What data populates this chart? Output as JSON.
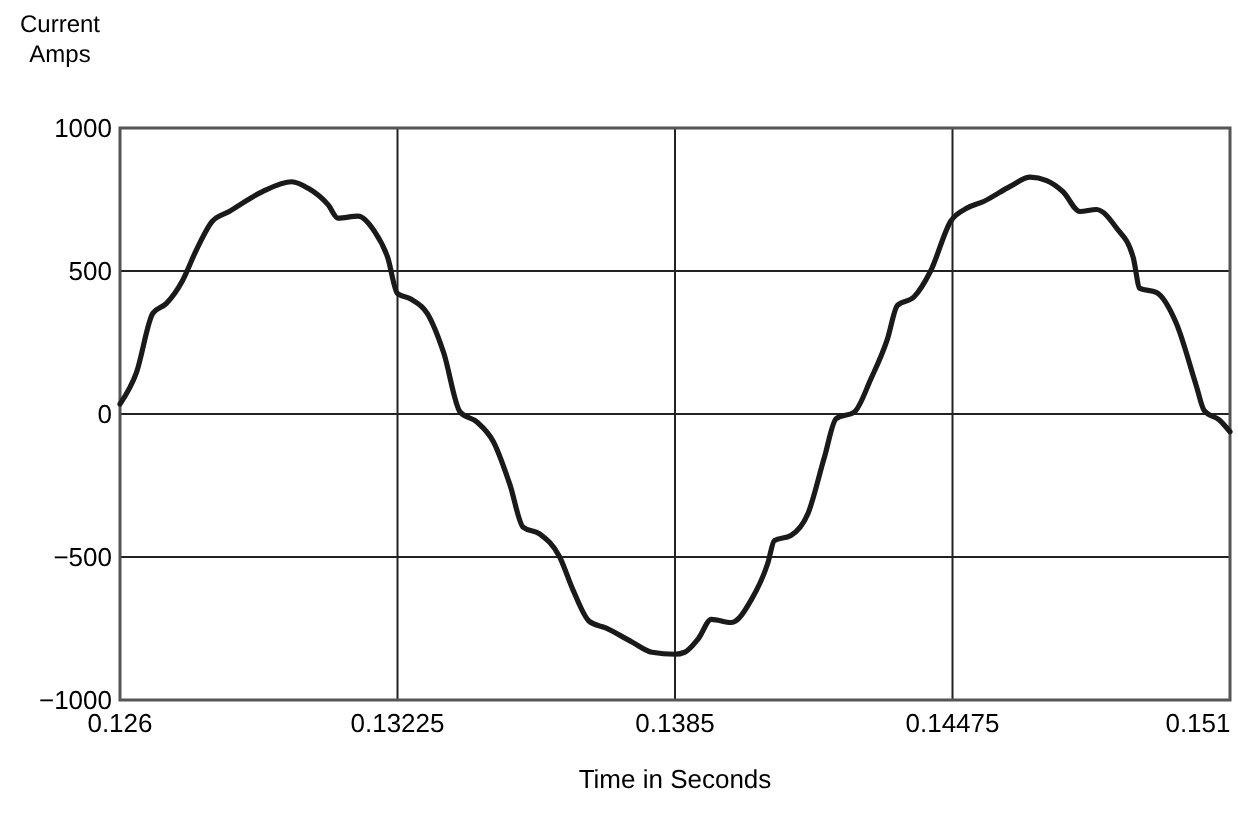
{
  "chart_data": {
    "type": "line",
    "ylabel": "Current\nAmps",
    "xlabel": "Time in Seconds",
    "x": [
      0.126,
      0.12637,
      0.12674,
      0.12704,
      0.12741,
      0.12771,
      0.12808,
      0.12846,
      0.1292,
      0.12987,
      0.13024,
      0.13069,
      0.13091,
      0.13136,
      0.13173,
      0.13203,
      0.13225,
      0.13255,
      0.13292,
      0.13329,
      0.13366,
      0.13404,
      0.13441,
      0.13478,
      0.13508,
      0.13545,
      0.1359,
      0.1362,
      0.13657,
      0.13694,
      0.13754,
      0.13798,
      0.1385,
      0.13872,
      0.13902,
      0.13932,
      0.13977,
      0.14022,
      0.14059,
      0.14074,
      0.14111,
      0.14149,
      0.14186,
      0.14213,
      0.14254,
      0.14291,
      0.14328,
      0.14351,
      0.14388,
      0.14426,
      0.14471,
      0.14508,
      0.14545,
      0.14605,
      0.1465,
      0.14687,
      0.14724,
      0.14762,
      0.14799,
      0.14844,
      0.14882,
      0.14897,
      0.14934,
      0.14979,
      0.15024,
      0.15042,
      0.15076,
      0.151
    ],
    "series": [
      {
        "color": "#1a1a1a",
        "values": [
          35,
          145,
          352,
          386,
          467,
          570,
          674,
          708,
          777,
          812,
          789,
          731,
          685,
          692,
          639,
          547,
          421,
          402,
          352,
          214,
          7,
          -28,
          -97,
          -246,
          -396,
          -419,
          -499,
          -614,
          -725,
          -748,
          -798,
          -833,
          -840,
          -833,
          -787,
          -718,
          -729,
          -649,
          -522,
          -442,
          -425,
          -350,
          -154,
          -16,
          7,
          122,
          260,
          380,
          409,
          501,
          674,
          720,
          743,
          796,
          828,
          816,
          777,
          708,
          715,
          651,
          547,
          439,
          425,
          317,
          99,
          12,
          -21,
          -62
        ]
      }
    ],
    "xlim": [
      0.126,
      0.151
    ],
    "xticks": [
      0.126,
      0.13225,
      0.1385,
      0.14475,
      0.151
    ],
    "ylim": [
      -1000,
      1000
    ],
    "yticks": [
      {
        "value": -1000,
        "label": "−1000"
      },
      {
        "value": -500,
        "label": "−500"
      },
      0,
      500,
      1000
    ],
    "grid": true,
    "line_style": "solid",
    "marker": "none"
  }
}
